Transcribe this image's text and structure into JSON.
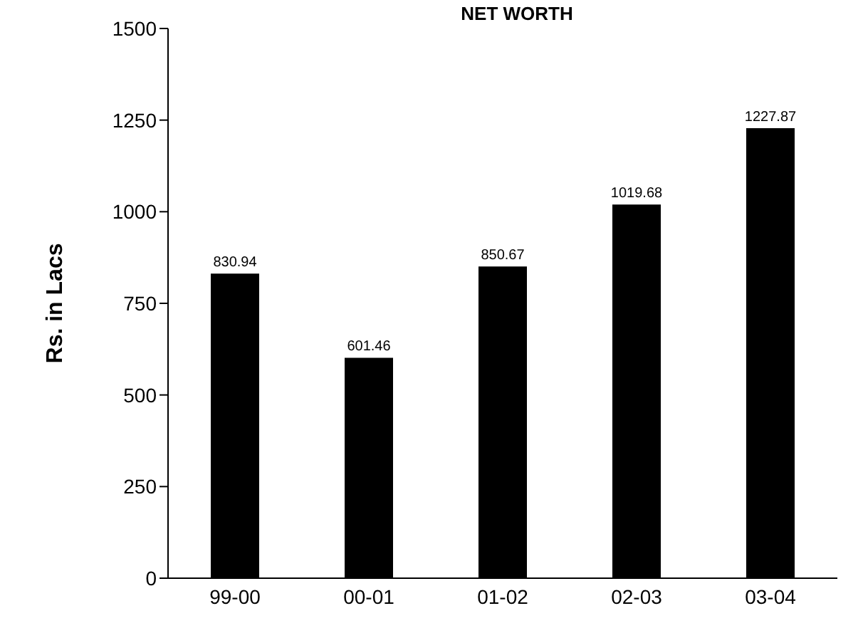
{
  "chart_data": {
    "type": "bar",
    "title": "NET WORTH",
    "ylabel": "Rs. in Lacs",
    "categories": [
      "99-00",
      "00-01",
      "01-02",
      "02-03",
      "03-04"
    ],
    "values": [
      830.94,
      601.46,
      850.67,
      1019.68,
      1227.87
    ],
    "color": "#000000",
    "ylim": [
      0,
      1500
    ],
    "yticks": [
      0,
      250,
      500,
      750,
      1000,
      1250,
      1500
    ],
    "data_labels": true,
    "grid": false,
    "legend": false
  }
}
